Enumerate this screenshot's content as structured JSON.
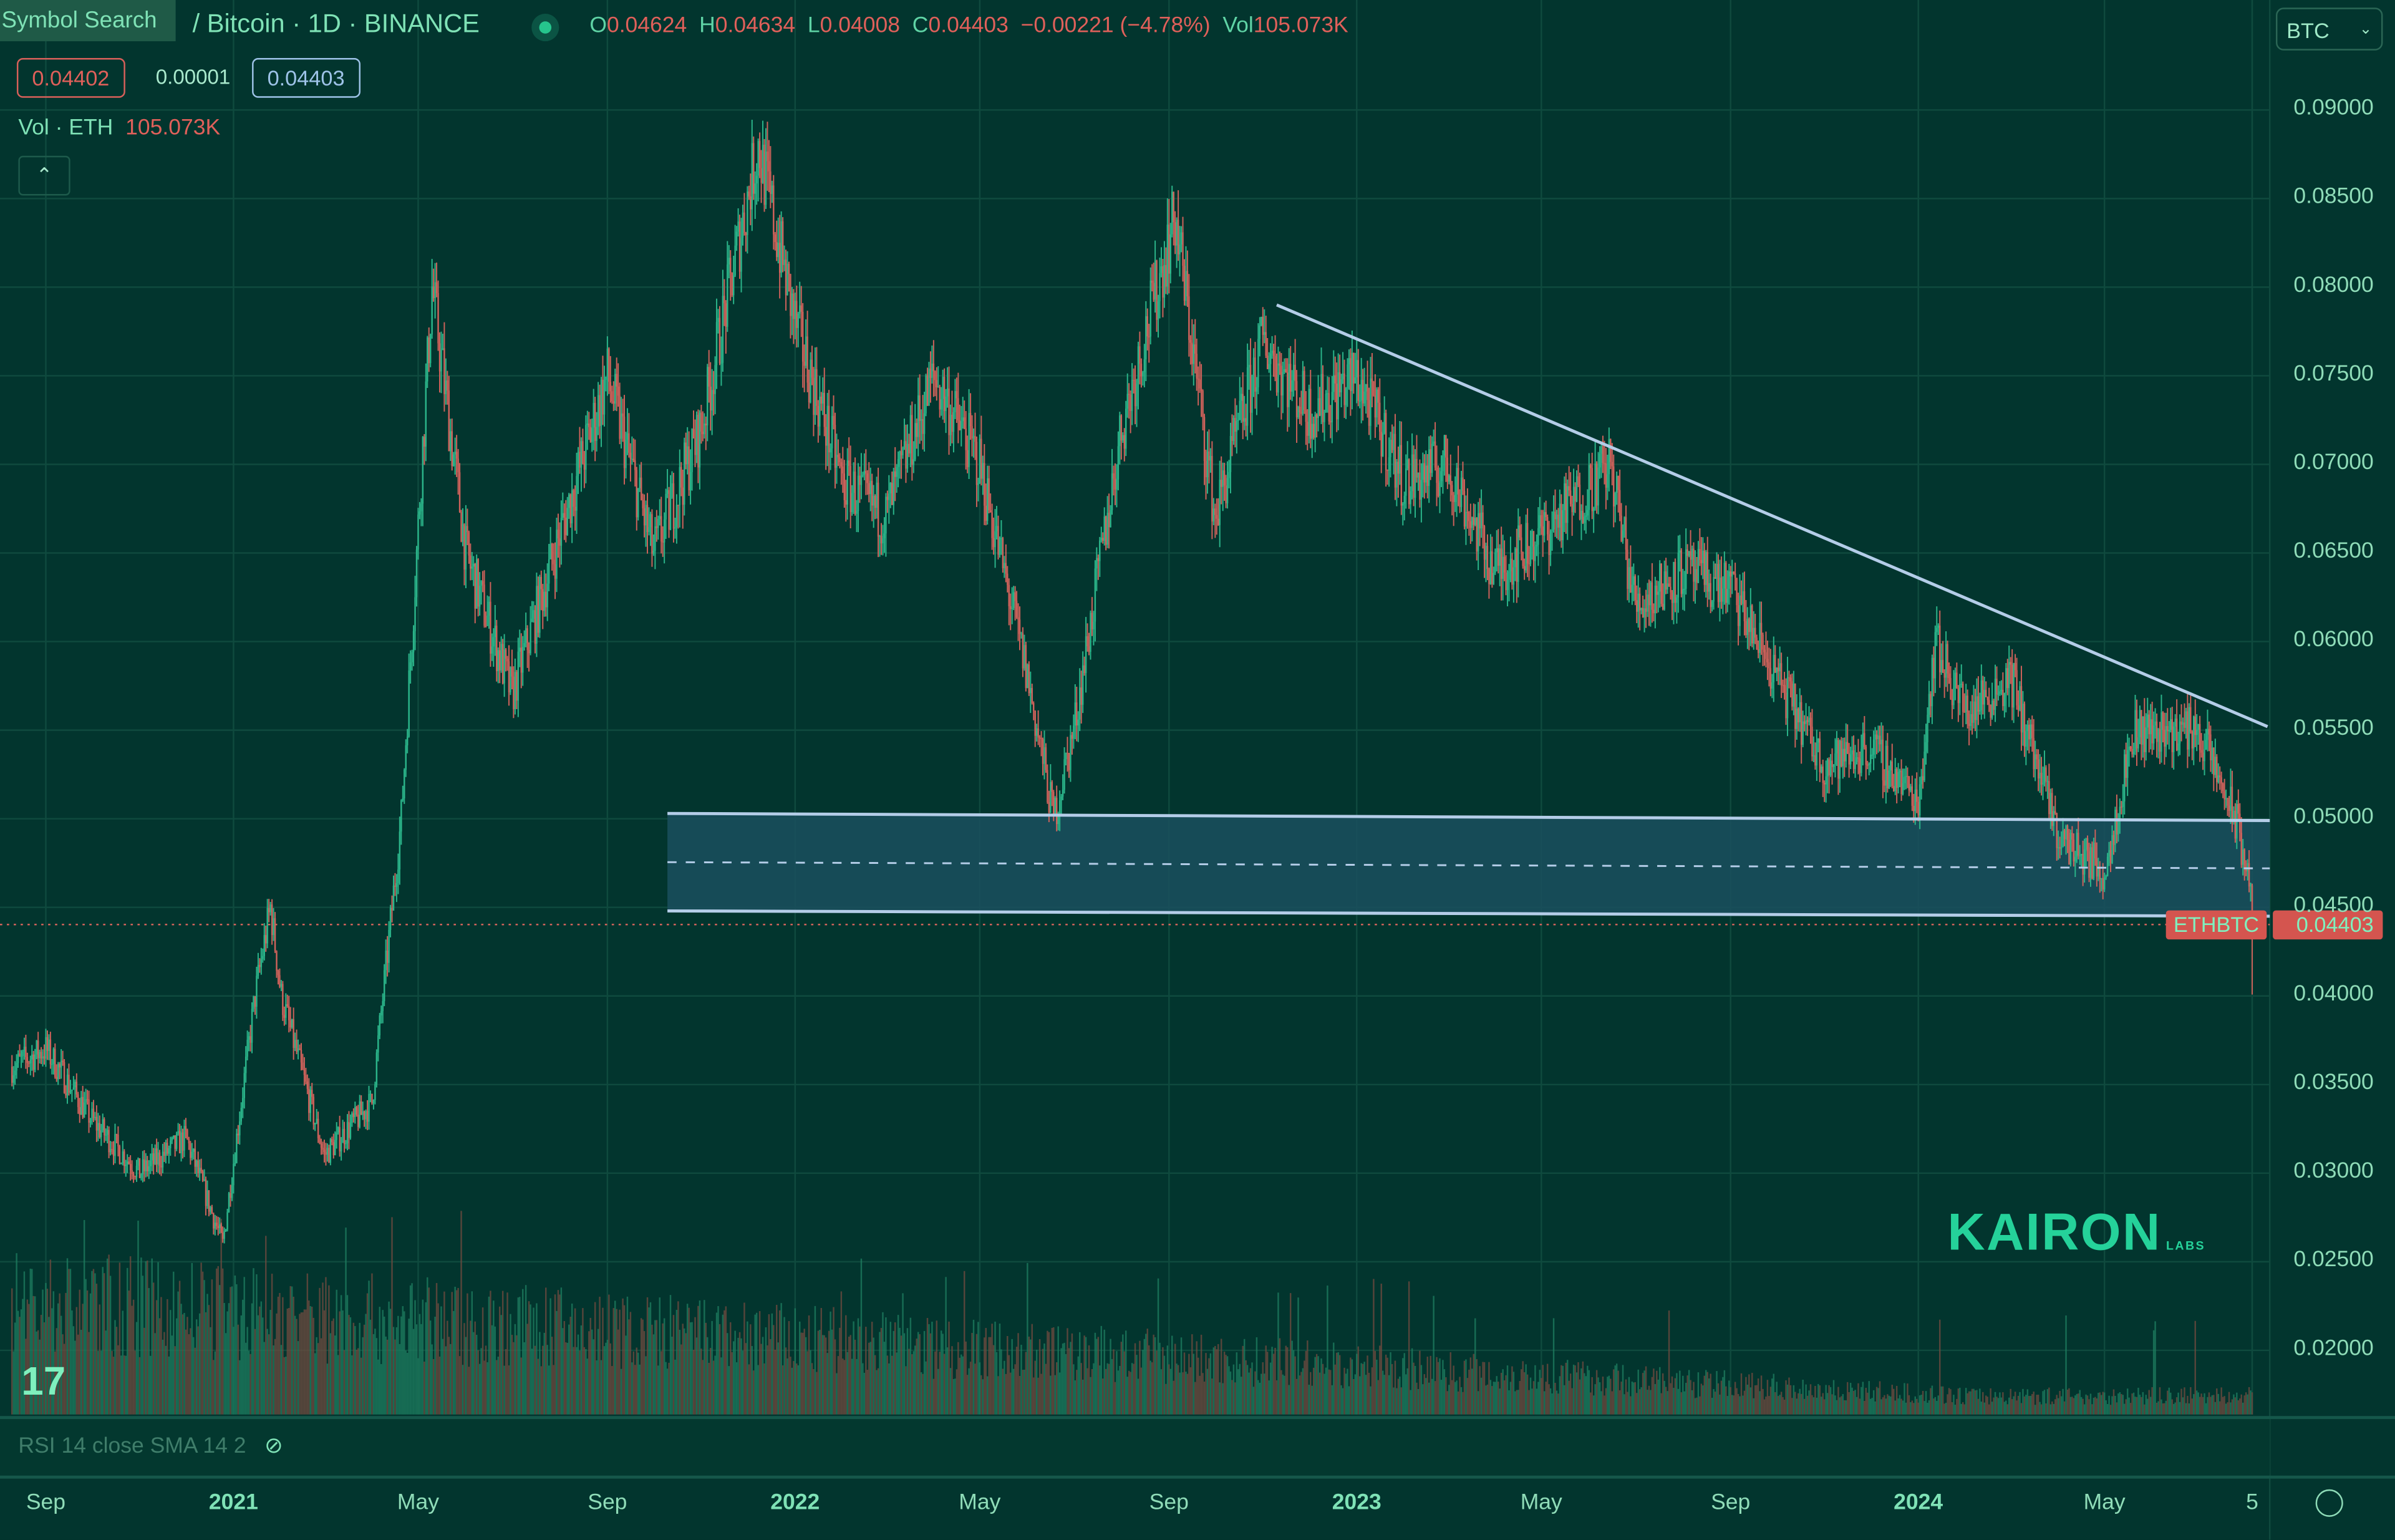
{
  "header": {
    "symbol_search": "Symbol Search",
    "title": "/ Bitcoin · 1D · BINANCE",
    "ohlc": {
      "o_label": "O",
      "o": "0.04624",
      "h_label": "H",
      "h": "0.04634",
      "l_label": "L",
      "l": "0.04008",
      "c_label": "C",
      "c": "0.04403",
      "change": "−0.00221 (−4.78%)",
      "vol_label": "Vol",
      "vol": "105.073K"
    },
    "bid": "0.04402",
    "spread": "0.00001",
    "ask": "0.04403",
    "volume_legend": {
      "label": "Vol · ETH",
      "value": "105.073K"
    },
    "collapse_icon": "chevron-up-icon"
  },
  "currency_select": {
    "value": "BTC"
  },
  "price_tag": {
    "symbol": "ETHBTC",
    "price": "0.04403"
  },
  "rsi_legend": "RSI 14 close SMA 14 2",
  "watermark": {
    "brand": "KAIRON",
    "sub": "LABS"
  },
  "colors": {
    "background": "#02352e",
    "up": "#2bb58a",
    "down": "#d0625b",
    "drawing": "#b4cde8",
    "text": "#5fd3a5"
  },
  "chart_data": {
    "type": "candlestick",
    "title": "",
    "interval": "1D",
    "y_ticks": [
      "0.09000",
      "0.08500",
      "0.08000",
      "0.07500",
      "0.07000",
      "0.06500",
      "0.06000",
      "0.05500",
      "0.05000",
      "0.04500",
      "0.04000",
      "0.03500",
      "0.03000",
      "0.02500",
      "0.02000"
    ],
    "ylim": [
      0.016,
      0.092
    ],
    "x_ticks": [
      {
        "label": "Sep",
        "date": "2020-09-01",
        "bold": false
      },
      {
        "label": "2021",
        "date": "2021-01-01",
        "bold": true
      },
      {
        "label": "May",
        "date": "2021-05-01",
        "bold": false
      },
      {
        "label": "Sep",
        "date": "2021-09-01",
        "bold": false
      },
      {
        "label": "2022",
        "date": "2022-01-01",
        "bold": true
      },
      {
        "label": "May",
        "date": "2022-05-01",
        "bold": false
      },
      {
        "label": "Sep",
        "date": "2022-09-01",
        "bold": false
      },
      {
        "label": "2023",
        "date": "2023-01-01",
        "bold": true
      },
      {
        "label": "May",
        "date": "2023-05-01",
        "bold": false
      },
      {
        "label": "Sep",
        "date": "2023-09-01",
        "bold": false
      },
      {
        "label": "2024",
        "date": "2024-01-01",
        "bold": true
      },
      {
        "label": "May",
        "date": "2024-05-01",
        "bold": false
      },
      {
        "label": "5",
        "date": "2024-08-05",
        "bold": false
      }
    ],
    "approx_closes": [
      [
        "2020-08-10",
        0.036
      ],
      [
        "2020-09-01",
        0.037
      ],
      [
        "2020-10-01",
        0.033
      ],
      [
        "2020-11-01",
        0.03
      ],
      [
        "2020-12-01",
        0.032
      ],
      [
        "2020-12-25",
        0.026
      ],
      [
        "2021-01-15",
        0.04
      ],
      [
        "2021-01-25",
        0.045
      ],
      [
        "2021-02-01",
        0.04
      ],
      [
        "2021-03-01",
        0.031
      ],
      [
        "2021-04-01",
        0.034
      ],
      [
        "2021-04-20",
        0.05
      ],
      [
        "2021-05-10",
        0.08
      ],
      [
        "2021-06-01",
        0.065
      ],
      [
        "2021-07-01",
        0.057
      ],
      [
        "2021-08-01",
        0.066
      ],
      [
        "2021-09-01",
        0.075
      ],
      [
        "2021-10-01",
        0.065
      ],
      [
        "2021-11-01",
        0.072
      ],
      [
        "2021-12-01",
        0.085
      ],
      [
        "2021-12-08",
        0.088
      ],
      [
        "2022-01-01",
        0.078
      ],
      [
        "2022-02-01",
        0.069
      ],
      [
        "2022-03-01",
        0.067
      ],
      [
        "2022-04-01",
        0.075
      ],
      [
        "2022-05-01",
        0.07
      ],
      [
        "2022-06-01",
        0.058
      ],
      [
        "2022-06-18",
        0.05
      ],
      [
        "2022-07-01",
        0.055
      ],
      [
        "2022-08-01",
        0.072
      ],
      [
        "2022-09-05",
        0.084
      ],
      [
        "2022-10-01",
        0.067
      ],
      [
        "2022-11-01",
        0.077
      ],
      [
        "2022-12-01",
        0.073
      ],
      [
        "2023-01-01",
        0.075
      ],
      [
        "2023-02-01",
        0.069
      ],
      [
        "2023-03-01",
        0.07
      ],
      [
        "2023-04-01",
        0.064
      ],
      [
        "2023-05-01",
        0.066
      ],
      [
        "2023-06-15",
        0.07
      ],
      [
        "2023-07-01",
        0.062
      ],
      [
        "2023-08-01",
        0.064
      ],
      [
        "2023-09-01",
        0.063
      ],
      [
        "2023-10-01",
        0.058
      ],
      [
        "2023-11-01",
        0.053
      ],
      [
        "2023-12-01",
        0.054
      ],
      [
        "2024-01-01",
        0.051
      ],
      [
        "2024-01-12",
        0.06
      ],
      [
        "2024-02-01",
        0.056
      ],
      [
        "2024-03-01",
        0.058
      ],
      [
        "2024-04-01",
        0.049
      ],
      [
        "2024-05-01",
        0.047
      ],
      [
        "2024-05-20",
        0.055
      ],
      [
        "2024-06-01",
        0.055
      ],
      [
        "2024-07-01",
        0.055
      ],
      [
        "2024-07-25",
        0.05
      ],
      [
        "2024-08-04",
        0.04624
      ]
    ],
    "last_candle": {
      "date": "2024-08-05",
      "open": 0.04624,
      "high": 0.04634,
      "low": 0.04008,
      "close": 0.04403
    },
    "last_price_line": 0.04403,
    "drawings": {
      "descending_trendline": [
        [
          "2022-11-10",
          0.079
        ],
        [
          "2024-08-15",
          0.0552
        ]
      ],
      "range_box": {
        "start": "2021-10-10",
        "end": "2024-08-15",
        "top": [
          0.0503,
          0.0499
        ],
        "bottom": [
          0.0448,
          0.0445
        ]
      }
    },
    "volume_series": "ETH"
  }
}
